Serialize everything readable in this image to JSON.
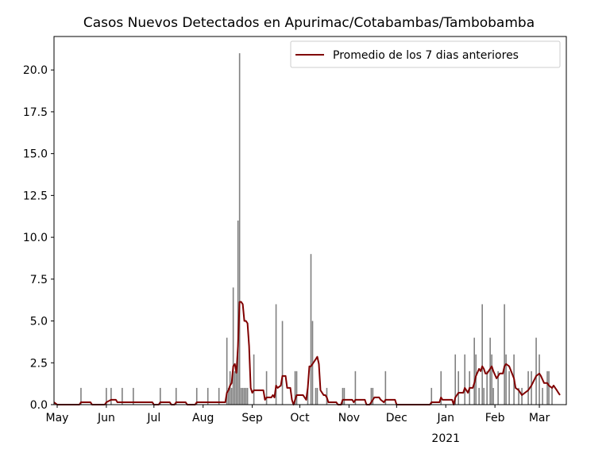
{
  "chart_data": {
    "type": "bar",
    "title": "Casos Nuevos Detectados en Apurimac/Cotabambas/Tambobamba",
    "xlabel": "",
    "ylabel": "",
    "x_start": "2020-04-29",
    "x_end": "2021-03-18",
    "ylim": [
      0,
      22
    ],
    "grid": false,
    "legend_position": "top-right",
    "y_ticks": [
      0.0,
      2.5,
      5.0,
      7.5,
      10.0,
      12.5,
      15.0,
      17.5,
      20.0
    ],
    "y_tick_labels": [
      "0.0",
      "2.5",
      "5.0",
      "7.5",
      "10.0",
      "12.5",
      "15.0",
      "17.5",
      "20.0"
    ],
    "x_ticks": [
      {
        "date": "2020-05-01",
        "label": "May",
        "sublabel": ""
      },
      {
        "date": "2020-06-01",
        "label": "Jun",
        "sublabel": ""
      },
      {
        "date": "2020-07-01",
        "label": "Jul",
        "sublabel": ""
      },
      {
        "date": "2020-08-01",
        "label": "Aug",
        "sublabel": ""
      },
      {
        "date": "2020-09-01",
        "label": "Sep",
        "sublabel": ""
      },
      {
        "date": "2020-10-01",
        "label": "Oct",
        "sublabel": ""
      },
      {
        "date": "2020-11-01",
        "label": "Nov",
        "sublabel": ""
      },
      {
        "date": "2020-12-01",
        "label": "Dec",
        "sublabel": ""
      },
      {
        "date": "2021-01-01",
        "label": "Jan",
        "sublabel": "2021"
      },
      {
        "date": "2021-02-01",
        "label": "Feb",
        "sublabel": ""
      },
      {
        "date": "2021-03-01",
        "label": "Mar",
        "sublabel": ""
      }
    ],
    "bar_color": "#808080",
    "line_color": "#800000",
    "series": [
      {
        "name": "",
        "kind": "bar",
        "points": [
          [
            "2020-05-16",
            1
          ],
          [
            "2020-06-01",
            1
          ],
          [
            "2020-06-04",
            1
          ],
          [
            "2020-06-11",
            1
          ],
          [
            "2020-06-18",
            1
          ],
          [
            "2020-07-05",
            1
          ],
          [
            "2020-07-15",
            1
          ],
          [
            "2020-07-28",
            1
          ],
          [
            "2020-08-04",
            1
          ],
          [
            "2020-08-11",
            1
          ],
          [
            "2020-08-16",
            4
          ],
          [
            "2020-08-17",
            1
          ],
          [
            "2020-08-18",
            2
          ],
          [
            "2020-08-19",
            1
          ],
          [
            "2020-08-20",
            7
          ],
          [
            "2020-08-21",
            2
          ],
          [
            "2020-08-22",
            2
          ],
          [
            "2020-08-23",
            11
          ],
          [
            "2020-08-24",
            21
          ],
          [
            "2020-08-25",
            1
          ],
          [
            "2020-08-26",
            1
          ],
          [
            "2020-08-27",
            1
          ],
          [
            "2020-08-28",
            1
          ],
          [
            "2020-08-29",
            1
          ],
          [
            "2020-09-02",
            3
          ],
          [
            "2020-09-10",
            2
          ],
          [
            "2020-09-16",
            6
          ],
          [
            "2020-09-20",
            5
          ],
          [
            "2020-09-28",
            2
          ],
          [
            "2020-09-29",
            2
          ],
          [
            "2020-10-06",
            1
          ],
          [
            "2020-10-08",
            9
          ],
          [
            "2020-10-09",
            5
          ],
          [
            "2020-10-11",
            1
          ],
          [
            "2020-10-12",
            1
          ],
          [
            "2020-10-18",
            1
          ],
          [
            "2020-10-28",
            1
          ],
          [
            "2020-10-29",
            1
          ],
          [
            "2020-11-05",
            2
          ],
          [
            "2020-11-15",
            1
          ],
          [
            "2020-11-16",
            1
          ],
          [
            "2020-11-24",
            2
          ],
          [
            "2020-12-23",
            1
          ],
          [
            "2020-12-29",
            2
          ],
          [
            "2021-01-07",
            3
          ],
          [
            "2021-01-09",
            2
          ],
          [
            "2021-01-13",
            3
          ],
          [
            "2021-01-16",
            2
          ],
          [
            "2021-01-19",
            4
          ],
          [
            "2021-01-20",
            3
          ],
          [
            "2021-01-22",
            1
          ],
          [
            "2021-01-24",
            6
          ],
          [
            "2021-01-25",
            1
          ],
          [
            "2021-01-27",
            2
          ],
          [
            "2021-01-29",
            4
          ],
          [
            "2021-01-30",
            3
          ],
          [
            "2021-01-31",
            1
          ],
          [
            "2021-02-03",
            2
          ],
          [
            "2021-02-07",
            6
          ],
          [
            "2021-02-08",
            3
          ],
          [
            "2021-02-10",
            2
          ],
          [
            "2021-02-13",
            3
          ],
          [
            "2021-02-16",
            1
          ],
          [
            "2021-02-18",
            1
          ],
          [
            "2021-02-22",
            2
          ],
          [
            "2021-02-24",
            2
          ],
          [
            "2021-02-27",
            4
          ],
          [
            "2021-03-01",
            3
          ],
          [
            "2021-03-03",
            1
          ],
          [
            "2021-03-06",
            2
          ],
          [
            "2021-03-07",
            2
          ],
          [
            "2021-03-09",
            1
          ]
        ]
      },
      {
        "name": "Promedio de los 7 dias anteriores",
        "kind": "line",
        "points": [
          [
            "2020-04-29",
            0.14
          ],
          [
            "2020-05-01",
            0.0
          ],
          [
            "2020-05-15",
            0.0
          ],
          [
            "2020-05-16",
            0.14
          ],
          [
            "2020-05-22",
            0.14
          ],
          [
            "2020-05-23",
            0.0
          ],
          [
            "2020-05-31",
            0.0
          ],
          [
            "2020-06-01",
            0.14
          ],
          [
            "2020-06-04",
            0.29
          ],
          [
            "2020-06-07",
            0.29
          ],
          [
            "2020-06-08",
            0.14
          ],
          [
            "2020-06-10",
            0.14
          ],
          [
            "2020-06-11",
            0.14
          ],
          [
            "2020-06-30",
            0.14
          ],
          [
            "2020-07-01",
            0.0
          ],
          [
            "2020-07-04",
            0.0
          ],
          [
            "2020-07-05",
            0.14
          ],
          [
            "2020-07-11",
            0.14
          ],
          [
            "2020-07-12",
            0.0
          ],
          [
            "2020-07-14",
            0.0
          ],
          [
            "2020-07-15",
            0.14
          ],
          [
            "2020-07-21",
            0.14
          ],
          [
            "2020-07-22",
            0.0
          ],
          [
            "2020-07-27",
            0.0
          ],
          [
            "2020-07-28",
            0.14
          ],
          [
            "2020-08-14",
            0.14
          ],
          [
            "2020-08-15",
            0.14
          ],
          [
            "2020-08-16",
            0.71
          ],
          [
            "2020-08-17",
            0.86
          ],
          [
            "2020-08-18",
            1.14
          ],
          [
            "2020-08-19",
            1.29
          ],
          [
            "2020-08-20",
            2.29
          ],
          [
            "2020-08-21",
            2.43
          ],
          [
            "2020-08-22",
            1.9
          ],
          [
            "2020-08-23",
            3.5
          ],
          [
            "2020-08-24",
            6.14
          ],
          [
            "2020-08-25",
            6.14
          ],
          [
            "2020-08-26",
            6.0
          ],
          [
            "2020-08-27",
            5.0
          ],
          [
            "2020-08-28",
            5.0
          ],
          [
            "2020-08-29",
            4.86
          ],
          [
            "2020-08-30",
            3.5
          ],
          [
            "2020-08-31",
            1.0
          ],
          [
            "2020-09-01",
            0.71
          ],
          [
            "2020-09-02",
            0.86
          ],
          [
            "2020-09-08",
            0.86
          ],
          [
            "2020-09-09",
            0.29
          ],
          [
            "2020-09-10",
            0.43
          ],
          [
            "2020-09-13",
            0.43
          ],
          [
            "2020-09-14",
            0.57
          ],
          [
            "2020-09-15",
            0.43
          ],
          [
            "2020-09-16",
            1.14
          ],
          [
            "2020-09-17",
            1.0
          ],
          [
            "2020-09-19",
            1.14
          ],
          [
            "2020-09-20",
            1.71
          ],
          [
            "2020-09-22",
            1.71
          ],
          [
            "2020-09-23",
            1.0
          ],
          [
            "2020-09-25",
            1.0
          ],
          [
            "2020-09-26",
            0.29
          ],
          [
            "2020-09-27",
            0.0
          ],
          [
            "2020-09-28",
            0.29
          ],
          [
            "2020-09-29",
            0.57
          ],
          [
            "2020-10-03",
            0.57
          ],
          [
            "2020-10-04",
            0.43
          ],
          [
            "2020-10-05",
            0.29
          ],
          [
            "2020-10-06",
            1.0
          ],
          [
            "2020-10-07",
            2.29
          ],
          [
            "2020-10-08",
            2.29
          ],
          [
            "2020-10-09",
            2.43
          ],
          [
            "2020-10-11",
            2.71
          ],
          [
            "2020-10-12",
            2.86
          ],
          [
            "2020-10-13",
            2.43
          ],
          [
            "2020-10-14",
            0.86
          ],
          [
            "2020-10-16",
            0.57
          ],
          [
            "2020-10-17",
            0.57
          ],
          [
            "2020-10-18",
            0.43
          ],
          [
            "2020-10-19",
            0.14
          ],
          [
            "2020-10-24",
            0.14
          ],
          [
            "2020-10-25",
            0.0
          ],
          [
            "2020-10-27",
            0.0
          ],
          [
            "2020-10-28",
            0.29
          ],
          [
            "2020-11-03",
            0.29
          ],
          [
            "2020-11-04",
            0.14
          ],
          [
            "2020-11-05",
            0.29
          ],
          [
            "2020-11-11",
            0.29
          ],
          [
            "2020-11-12",
            0.0
          ],
          [
            "2020-11-14",
            0.0
          ],
          [
            "2020-11-15",
            0.14
          ],
          [
            "2020-11-16",
            0.29
          ],
          [
            "2020-11-17",
            0.43
          ],
          [
            "2020-11-20",
            0.43
          ],
          [
            "2020-11-21",
            0.29
          ],
          [
            "2020-11-23",
            0.14
          ],
          [
            "2020-11-24",
            0.29
          ],
          [
            "2020-11-30",
            0.29
          ],
          [
            "2020-12-01",
            0.0
          ],
          [
            "2020-12-22",
            0.0
          ],
          [
            "2020-12-23",
            0.14
          ],
          [
            "2020-12-28",
            0.14
          ],
          [
            "2020-12-29",
            0.43
          ],
          [
            "2020-12-30",
            0.29
          ],
          [
            "2021-01-05",
            0.29
          ],
          [
            "2021-01-06",
            0.0
          ],
          [
            "2021-01-07",
            0.43
          ],
          [
            "2021-01-09",
            0.71
          ],
          [
            "2021-01-12",
            0.71
          ],
          [
            "2021-01-13",
            1.0
          ],
          [
            "2021-01-15",
            0.71
          ],
          [
            "2021-01-16",
            1.0
          ],
          [
            "2021-01-18",
            1.0
          ],
          [
            "2021-01-19",
            1.29
          ],
          [
            "2021-01-20",
            1.71
          ],
          [
            "2021-01-22",
            2.14
          ],
          [
            "2021-01-23",
            2.0
          ],
          [
            "2021-01-24",
            2.29
          ],
          [
            "2021-01-25",
            2.14
          ],
          [
            "2021-01-26",
            1.86
          ],
          [
            "2021-01-27",
            1.86
          ],
          [
            "2021-01-29",
            2.14
          ],
          [
            "2021-01-30",
            2.29
          ],
          [
            "2021-01-31",
            2.0
          ],
          [
            "2021-02-02",
            1.57
          ],
          [
            "2021-02-03",
            1.71
          ],
          [
            "2021-02-04",
            1.86
          ],
          [
            "2021-02-05",
            1.86
          ],
          [
            "2021-02-06",
            1.86
          ],
          [
            "2021-02-07",
            2.29
          ],
          [
            "2021-02-08",
            2.43
          ],
          [
            "2021-02-10",
            2.29
          ],
          [
            "2021-02-13",
            1.57
          ],
          [
            "2021-02-14",
            1.0
          ],
          [
            "2021-02-16",
            0.86
          ],
          [
            "2021-02-18",
            0.57
          ],
          [
            "2021-02-22",
            0.86
          ],
          [
            "2021-02-24",
            1.14
          ],
          [
            "2021-02-27",
            1.71
          ],
          [
            "2021-03-01",
            1.86
          ],
          [
            "2021-03-02",
            1.71
          ],
          [
            "2021-03-04",
            1.29
          ],
          [
            "2021-03-06",
            1.29
          ],
          [
            "2021-03-07",
            1.14
          ],
          [
            "2021-03-09",
            1.0
          ],
          [
            "2021-03-10",
            1.14
          ],
          [
            "2021-03-11",
            1.0
          ],
          [
            "2021-03-12",
            0.86
          ],
          [
            "2021-03-13",
            0.71
          ],
          [
            "2021-03-14",
            0.57
          ]
        ]
      }
    ]
  }
}
